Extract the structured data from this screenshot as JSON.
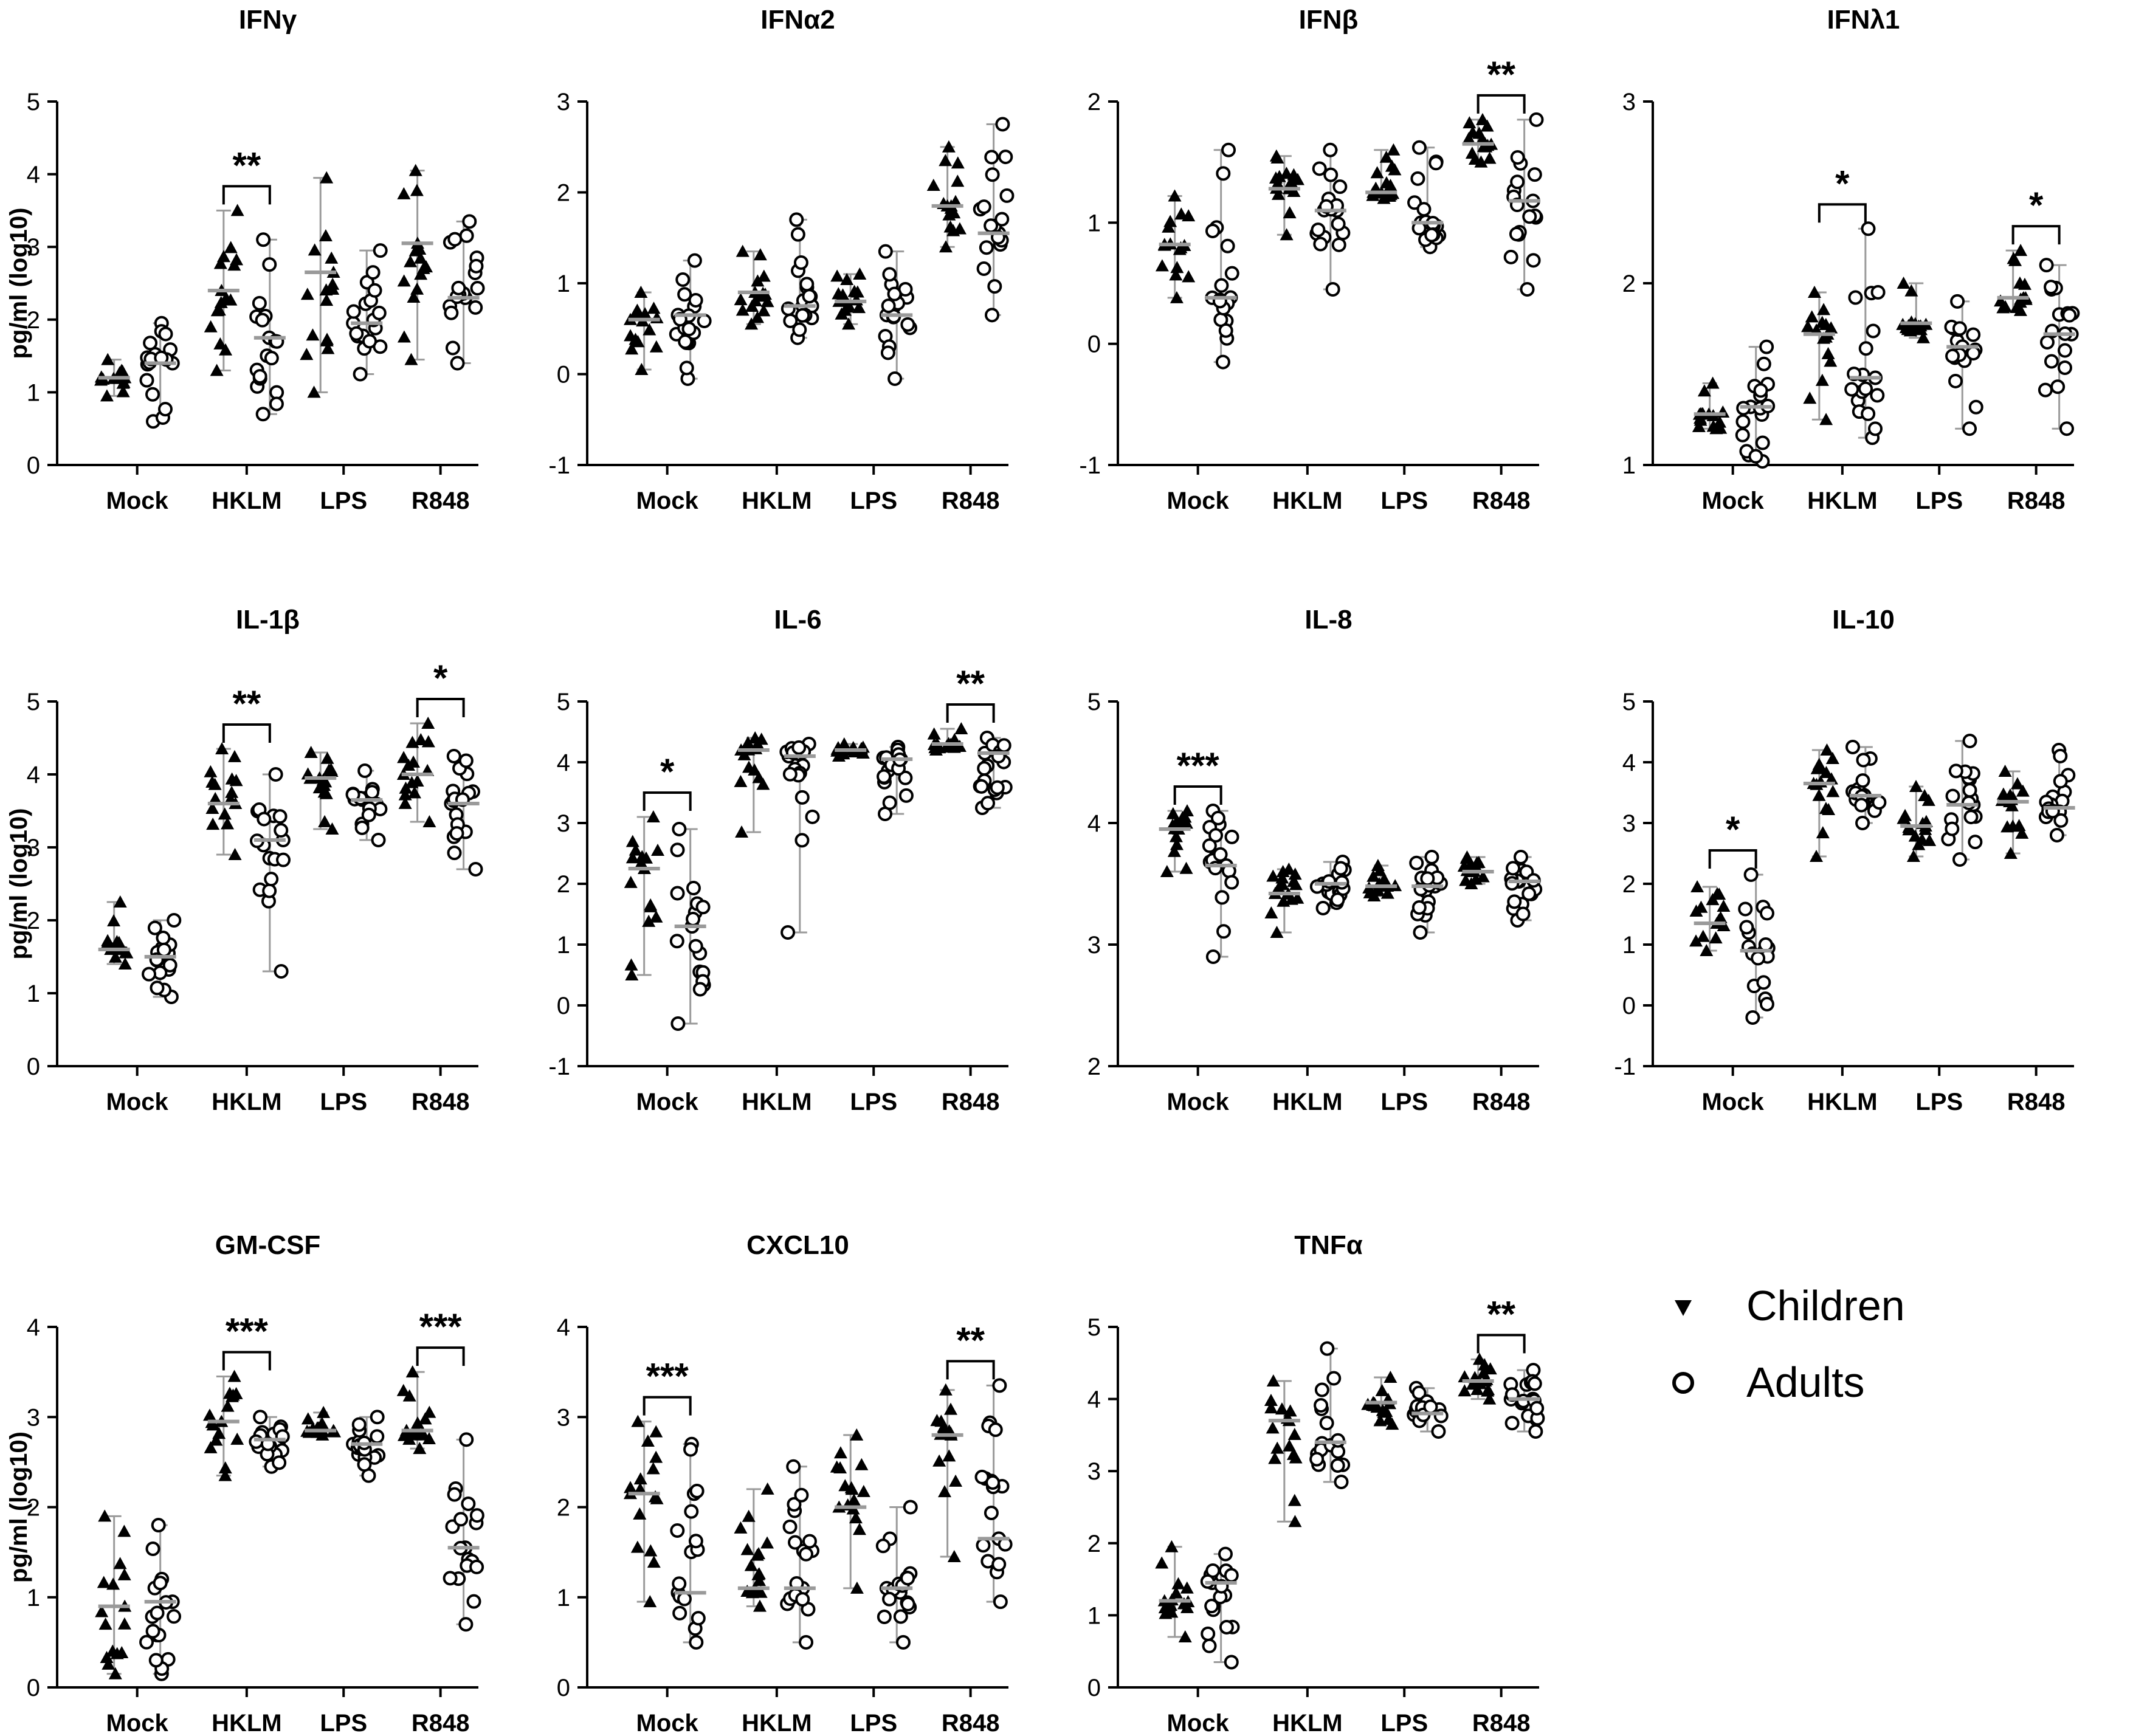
{
  "chart_data": {
    "type": "scatter",
    "ylabel": "pg/ml (log10)",
    "categories": [
      "Mock",
      "HKLM",
      "LPS",
      "R848"
    ],
    "legend": {
      "placement": "bottom-right",
      "entries": [
        {
          "name": "Children",
          "marker": "filled-triangle"
        },
        {
          "name": "Adults",
          "marker": "open-circle"
        }
      ]
    },
    "colors": {
      "points": "#000000",
      "median_bar": "#9a9a9a"
    },
    "panels": [
      {
        "title": "IFNγ",
        "ylim": [
          0,
          5
        ],
        "ticks": [
          "0",
          "1",
          "2",
          "3",
          "4",
          "5"
        ],
        "children": {
          "median": [
            1.2,
            2.4,
            2.65,
            3.05
          ],
          "min": [
            0.95,
            1.3,
            1.0,
            1.45
          ],
          "max": [
            1.45,
            3.5,
            3.95,
            4.05
          ]
        },
        "adults": {
          "median": [
            1.4,
            1.75,
            1.95,
            2.3
          ],
          "min": [
            0.6,
            0.7,
            1.25,
            1.4
          ],
          "max": [
            1.95,
            3.1,
            2.95,
            3.35
          ]
        },
        "significance": [
          {
            "category": "HKLM",
            "label": "**"
          }
        ]
      },
      {
        "title": "IFNα2",
        "ylim": [
          -1,
          3
        ],
        "ticks": [
          "-1",
          "0",
          "1",
          "2",
          "3"
        ],
        "children": {
          "median": [
            0.6,
            0.9,
            0.8,
            1.85
          ],
          "min": [
            0.05,
            0.55,
            0.55,
            1.4
          ],
          "max": [
            0.9,
            1.35,
            1.1,
            2.5
          ]
        },
        "adults": {
          "median": [
            0.65,
            0.75,
            0.65,
            1.55
          ],
          "min": [
            -0.05,
            0.4,
            -0.05,
            0.65
          ],
          "max": [
            1.25,
            1.7,
            1.35,
            2.75
          ]
        },
        "significance": []
      },
      {
        "title": "IFNβ",
        "ylim": [
          -1,
          2
        ],
        "ticks": [
          "-1",
          "0",
          "1",
          "2"
        ],
        "children": {
          "median": [
            0.82,
            1.28,
            1.25,
            1.65
          ],
          "min": [
            0.38,
            0.9,
            1.2,
            1.5
          ],
          "max": [
            1.22,
            1.55,
            1.6,
            1.85
          ]
        },
        "adults": {
          "median": [
            0.38,
            1.1,
            1.0,
            1.18
          ],
          "min": [
            -0.15,
            0.45,
            0.8,
            0.45
          ],
          "max": [
            1.6,
            1.6,
            1.62,
            1.85
          ]
        },
        "significance": [
          {
            "category": "R848",
            "label": "**"
          }
        ]
      },
      {
        "title": "IFNλ1",
        "ylim": [
          1,
          3
        ],
        "ticks": [
          "1",
          "2",
          "3"
        ],
        "children": {
          "median": [
            1.28,
            1.72,
            1.78,
            1.92
          ],
          "min": [
            1.2,
            1.25,
            1.7,
            1.85
          ],
          "max": [
            1.45,
            1.95,
            2.0,
            2.18
          ]
        },
        "adults": {
          "median": [
            1.32,
            1.48,
            1.65,
            1.72
          ],
          "min": [
            1.02,
            1.15,
            1.2,
            1.2
          ],
          "max": [
            1.65,
            2.3,
            1.9,
            2.1
          ]
        },
        "significance": [
          {
            "category": "HKLM",
            "label": "*"
          },
          {
            "category": "R848",
            "label": "*"
          }
        ]
      },
      {
        "title": "IL-1β",
        "ylim": [
          0,
          5
        ],
        "ticks": [
          "0",
          "1",
          "2",
          "3",
          "4",
          "5"
        ],
        "children": {
          "median": [
            1.6,
            3.6,
            3.95,
            4.0
          ],
          "min": [
            1.4,
            2.9,
            3.25,
            3.35
          ],
          "max": [
            2.25,
            4.35,
            4.3,
            4.7
          ]
        },
        "adults": {
          "median": [
            1.5,
            3.1,
            3.65,
            3.6
          ],
          "min": [
            0.95,
            1.3,
            3.1,
            2.7
          ],
          "max": [
            2.0,
            4.0,
            4.05,
            4.25
          ]
        },
        "significance": [
          {
            "category": "HKLM",
            "label": "**"
          },
          {
            "category": "R848",
            "label": "*"
          }
        ]
      },
      {
        "title": "IL-6",
        "ylim": [
          -1,
          5
        ],
        "ticks": [
          "-1",
          "0",
          "1",
          "2",
          "3",
          "4",
          "5"
        ],
        "children": {
          "median": [
            2.25,
            4.2,
            4.2,
            4.3
          ],
          "min": [
            0.5,
            2.85,
            4.1,
            4.2
          ],
          "max": [
            3.1,
            4.4,
            4.3,
            4.55
          ]
        },
        "adults": {
          "median": [
            1.3,
            4.1,
            4.05,
            4.15
          ],
          "min": [
            -0.3,
            1.2,
            3.15,
            3.25
          ],
          "max": [
            2.9,
            4.3,
            4.25,
            4.4
          ]
        },
        "significance": [
          {
            "category": "Mock",
            "label": "*"
          },
          {
            "category": "R848",
            "label": "**"
          }
        ]
      },
      {
        "title": "IL-8",
        "ylim": [
          2,
          5
        ],
        "ticks": [
          "2",
          "3",
          "4",
          "5"
        ],
        "children": {
          "median": [
            3.95,
            3.42,
            3.48,
            3.6
          ],
          "min": [
            3.6,
            3.1,
            3.4,
            3.5
          ],
          "max": [
            4.1,
            3.62,
            3.65,
            3.72
          ]
        },
        "adults": {
          "median": [
            3.65,
            3.5,
            3.48,
            3.52
          ],
          "min": [
            2.9,
            3.3,
            3.1,
            3.2
          ],
          "max": [
            4.1,
            3.68,
            3.72,
            3.72
          ]
        },
        "significance": [
          {
            "category": "Mock",
            "label": "***"
          }
        ]
      },
      {
        "title": "IL-10",
        "ylim": [
          -1,
          5
        ],
        "ticks": [
          "-1",
          "0",
          "1",
          "2",
          "3",
          "4",
          "5"
        ],
        "children": {
          "median": [
            1.35,
            3.65,
            2.95,
            3.35
          ],
          "min": [
            0.9,
            2.45,
            2.45,
            2.5
          ],
          "max": [
            1.95,
            4.2,
            3.6,
            3.85
          ]
        },
        "adults": {
          "median": [
            0.9,
            3.45,
            3.3,
            3.25
          ],
          "min": [
            -0.2,
            3.0,
            2.4,
            2.8
          ],
          "max": [
            2.15,
            4.25,
            4.35,
            4.2
          ]
        },
        "significance": [
          {
            "category": "Mock",
            "label": "*"
          }
        ]
      },
      {
        "title": "GM-CSF",
        "ylim": [
          0,
          4
        ],
        "ticks": [
          "0",
          "1",
          "2",
          "3",
          "4"
        ],
        "children": {
          "median": [
            0.9,
            2.95,
            2.85,
            2.85
          ],
          "min": [
            0.15,
            2.35,
            2.8,
            2.65
          ],
          "max": [
            1.9,
            3.45,
            3.05,
            3.5
          ]
        },
        "adults": {
          "median": [
            0.95,
            2.75,
            2.7,
            1.55
          ],
          "min": [
            0.15,
            2.45,
            2.35,
            0.7
          ],
          "max": [
            1.8,
            3.0,
            3.0,
            2.75
          ]
        },
        "significance": [
          {
            "category": "HKLM",
            "label": "***"
          },
          {
            "category": "R848",
            "label": "***"
          }
        ]
      },
      {
        "title": "CXCL10",
        "ylim": [
          0,
          4
        ],
        "ticks": [
          "0",
          "1",
          "2",
          "3",
          "4"
        ],
        "children": {
          "median": [
            2.15,
            1.1,
            2.0,
            2.8
          ],
          "min": [
            0.95,
            0.9,
            1.1,
            1.45
          ],
          "max": [
            2.95,
            2.2,
            2.8,
            3.3
          ]
        },
        "adults": {
          "median": [
            1.05,
            1.1,
            1.1,
            1.65
          ],
          "min": [
            0.5,
            0.5,
            0.5,
            0.95
          ],
          "max": [
            2.7,
            2.45,
            2.0,
            3.35
          ]
        },
        "significance": [
          {
            "category": "Mock",
            "label": "***"
          },
          {
            "category": "R848",
            "label": "**"
          }
        ]
      },
      {
        "title": "TNFα",
        "ylim": [
          0,
          5
        ],
        "ticks": [
          "0",
          "1",
          "2",
          "3",
          "4",
          "5"
        ],
        "children": {
          "median": [
            1.2,
            3.7,
            3.95,
            4.25
          ],
          "min": [
            0.7,
            2.3,
            3.65,
            4.0
          ],
          "max": [
            1.95,
            4.25,
            4.3,
            4.55
          ]
        },
        "adults": {
          "median": [
            1.45,
            3.4,
            3.8,
            4.0
          ],
          "min": [
            0.35,
            2.85,
            3.55,
            3.55
          ],
          "max": [
            1.85,
            4.7,
            4.15,
            4.4
          ]
        },
        "significance": [
          {
            "category": "R848",
            "label": "**"
          }
        ]
      }
    ]
  }
}
